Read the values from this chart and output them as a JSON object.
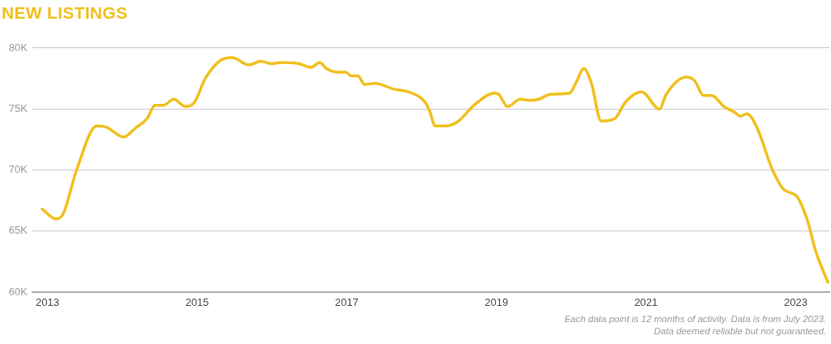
{
  "chart_data": {
    "type": "line",
    "title": "NEW LISTINGS",
    "annotations": [
      "Each data point is 12 months of activity. Data is from July 2023.",
      "Data deemed reliable but not guaranteed."
    ],
    "x": [
      2012.93,
      2013.11,
      2013.21,
      2013.39,
      2013.66,
      2013.79,
      2014.02,
      2014.17,
      2014.33,
      2014.44,
      2014.55,
      2014.69,
      2014.84,
      2014.96,
      2015.11,
      2015.32,
      2015.47,
      2015.69,
      2015.85,
      2016.0,
      2016.12,
      2016.36,
      2016.52,
      2016.64,
      2016.73,
      2016.88,
      2016.99,
      2017.06,
      2017.15,
      2017.24,
      2017.38,
      2017.64,
      2017.82,
      2018.04,
      2018.11,
      2018.18,
      2018.32,
      2018.47,
      2018.72,
      2018.97,
      2019.03,
      2019.15,
      2019.32,
      2019.44,
      2019.57,
      2019.72,
      2019.98,
      2020.06,
      2020.17,
      2020.27,
      2020.4,
      2020.58,
      2020.73,
      2020.94,
      2021.18,
      2021.27,
      2021.54,
      2021.65,
      2021.77,
      2021.88,
      2022.04,
      2022.19,
      2022.26,
      2022.35,
      2022.48,
      2022.69,
      2022.84,
      2023.02,
      2023.16,
      2023.27,
      2023.43
    ],
    "values": [
      66800,
      66000,
      66400,
      70000,
      73600,
      73500,
      72700,
      73400,
      74200,
      75300,
      75300,
      75800,
      75200,
      75500,
      77500,
      79000,
      79200,
      78600,
      78900,
      78700,
      78800,
      78700,
      78400,
      78800,
      78300,
      78000,
      78000,
      77700,
      77700,
      77000,
      77100,
      76600,
      76400,
      75600,
      74800,
      73600,
      73600,
      73900,
      75400,
      76300,
      76200,
      75200,
      75800,
      75700,
      75800,
      76200,
      76300,
      77100,
      78300,
      77100,
      74000,
      74200,
      75600,
      76400,
      75000,
      76200,
      77600,
      77300,
      76100,
      76100,
      75200,
      74700,
      74400,
      74600,
      73500,
      70000,
      68400,
      67800,
      65800,
      63300,
      60800
    ],
    "color": "#f0bf1c",
    "xlim": [
      2012.8,
      2023.45
    ],
    "xticks": [
      2013,
      2015,
      2017,
      2019,
      2021,
      2023
    ],
    "ylim": [
      60000,
      80000
    ],
    "yticks": [
      {
        "value": 60000,
        "label": "60K"
      },
      {
        "value": 65000,
        "label": "65K"
      },
      {
        "value": 70000,
        "label": "70K"
      },
      {
        "value": 75000,
        "label": "75K"
      },
      {
        "value": 80000,
        "label": "80K"
      }
    ],
    "grid": "y"
  }
}
